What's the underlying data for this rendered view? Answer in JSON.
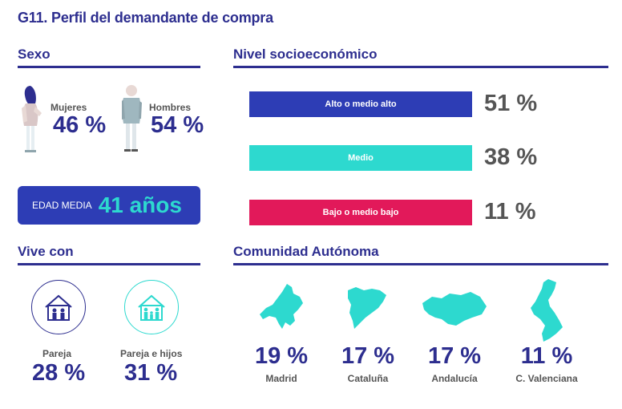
{
  "title": "G11. Perfil del demandante de compra",
  "sexo": {
    "heading": "Sexo",
    "mujeres_label": "Mujeres",
    "mujeres_pct": "46 %",
    "hombres_label": "Hombres",
    "hombres_pct": "54 %"
  },
  "edad": {
    "label": "EDAD MEDIA",
    "value": "41 años"
  },
  "nivel": {
    "heading": "Nivel socioeconómico",
    "items": [
      {
        "label": "Alto o medio alto",
        "pct": "51 %",
        "color": "#2d3db5"
      },
      {
        "label": "Medio",
        "pct": "38 %",
        "color": "#2dd9cf"
      },
      {
        "label": "Bajo o medio bajo",
        "pct": "11 %",
        "color": "#e2195a"
      }
    ]
  },
  "vive": {
    "heading": "Vive con",
    "items": [
      {
        "label": "Pareja",
        "pct": "28 %",
        "icon": "house-couple-icon",
        "color": "#2d2e8f"
      },
      {
        "label": "Pareja e hijos",
        "pct": "31 %",
        "icon": "house-family-icon",
        "color": "#2dd9cf"
      }
    ]
  },
  "comunidad": {
    "heading": "Comunidad Autónoma",
    "items": [
      {
        "name": "Madrid",
        "pct": "19 %",
        "icon": "madrid-map-icon"
      },
      {
        "name": "Cataluña",
        "pct": "17 %",
        "icon": "cataluna-map-icon"
      },
      {
        "name": "Andalucía",
        "pct": "17 %",
        "icon": "andalucia-map-icon"
      },
      {
        "name": "C. Valenciana",
        "pct": "11 %",
        "icon": "valenciana-map-icon"
      }
    ]
  },
  "colors": {
    "navy": "#2d2e8f",
    "blue": "#2d3db5",
    "teal": "#2dd9cf",
    "pink": "#e2195a",
    "gray": "#555555"
  }
}
